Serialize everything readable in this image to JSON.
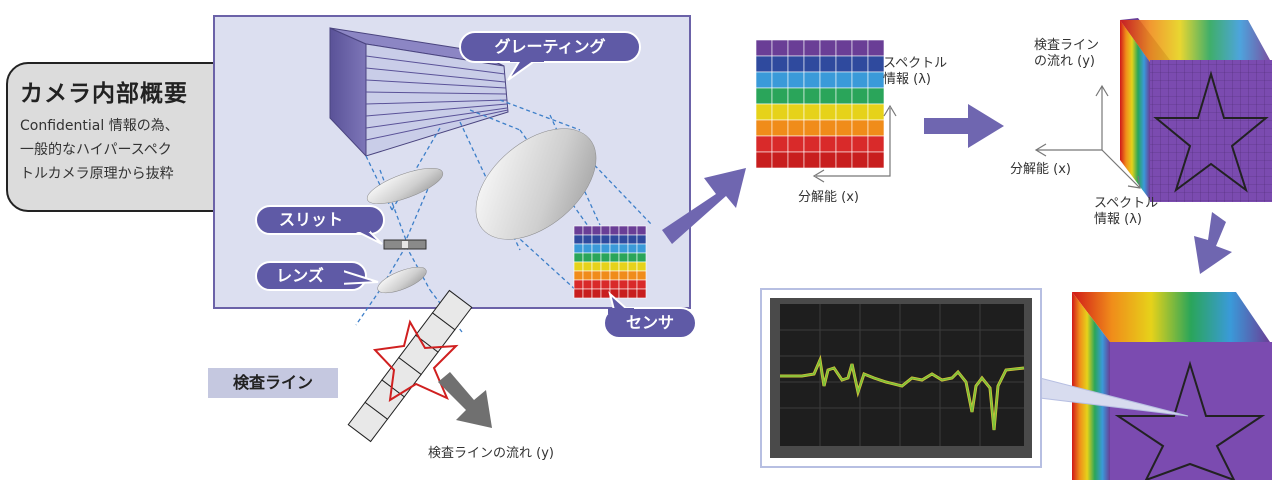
{
  "overview": {
    "title": "カメラ内部概要",
    "body_lines": [
      "Confidential 情報の為、",
      "一般的なハイパースペク",
      "トルカメラ原理から抜粋"
    ]
  },
  "callouts": {
    "grating": "グレーティング",
    "slit": "スリット",
    "lens": "レンズ",
    "sensor": "センサ"
  },
  "inspection_line_label": "検査ライン",
  "inspection_flow_label": "検査ラインの流れ (y)",
  "sensor_axes": {
    "spectral": "スペクトル\n情報 (λ)",
    "resolution": "分解能 (x)"
  },
  "cube_axes": {
    "flow": "検査ライン\nの流れ (y)",
    "resolution": "分解能 (x)",
    "spectral": "スペクトル\n情報 (λ)"
  },
  "colors": {
    "accent": "#6b62a8",
    "callout": "#5f5aa6",
    "arrow": "#6f66b0",
    "grey_arrow": "#707070",
    "cube_face": "#7b4bb0",
    "spectrum": [
      "#6a3e96",
      "#2f4a9e",
      "#3a9ad9",
      "#2aa55a",
      "#e6d21a",
      "#f08c1a",
      "#d92a2a",
      "#c81e1e"
    ]
  }
}
